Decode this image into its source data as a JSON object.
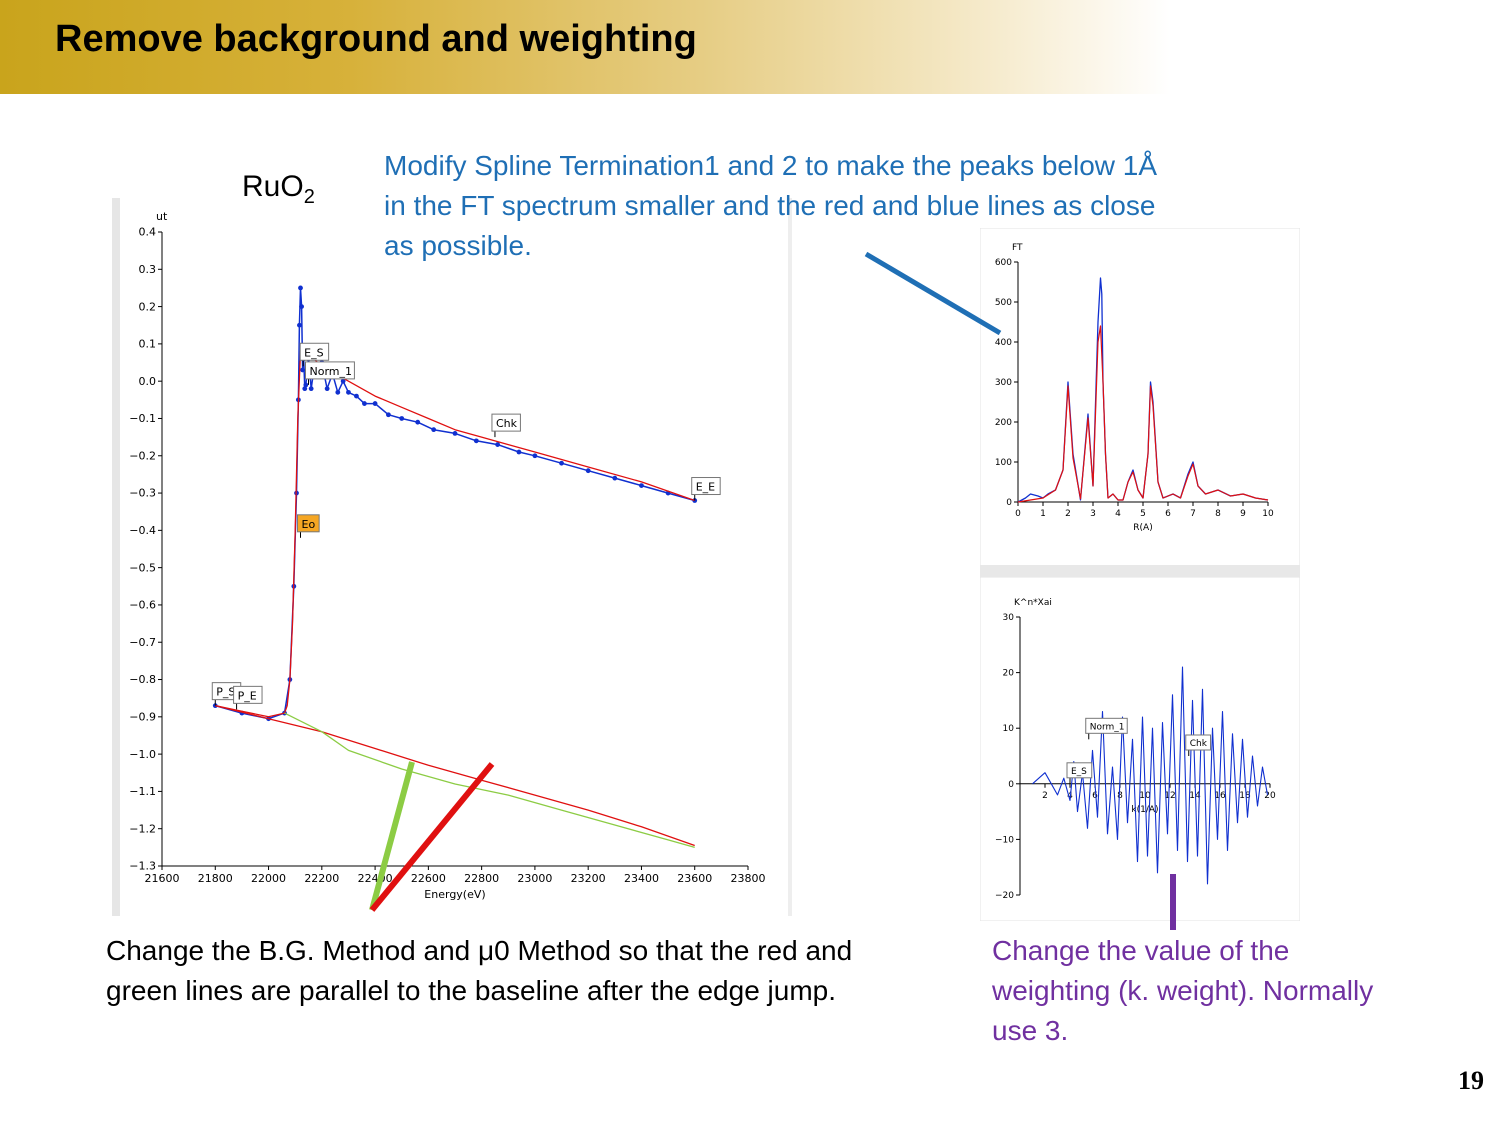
{
  "slide": {
    "title": "Remove background and weighting",
    "sample_label": "RuO",
    "sample_subscript": "2",
    "note_spline": "Modify Spline Termination1 and 2 to make the peaks below 1Å in the FT spectrum smaller and the red and blue lines as close as possible.",
    "note_background": "Change the B.G. Method and μ0 Method so that the red and green lines are parallel to the baseline after the edge jump.",
    "note_weighting": "Change the value of the weighting (k. weight). Normally use 3.",
    "page_number": "19"
  },
  "colors": {
    "title_gold": "#c9a41c",
    "note_blue": "#1f6fb5",
    "note_purple": "#7030a0",
    "data_blue": "#1030d0",
    "fit_red": "#e01010",
    "baseline_green": "#8ccc44",
    "eo_marker": "#f5a623"
  },
  "chart_data": [
    {
      "type": "line",
      "xlabel": "Energy(eV)",
      "ylabel": "ut",
      "xlim": [
        21600,
        23800
      ],
      "ylim": [
        -1.3,
        0.4
      ],
      "xticks": [
        "21600",
        "21800",
        "22000",
        "22200",
        "22400",
        "22600",
        "22800",
        "23000",
        "23200",
        "23400",
        "23600",
        "23800"
      ],
      "yticks": [
        "0.4",
        "0.3",
        "0.2",
        "0.1",
        "0.0",
        "−0.1",
        "−0.2",
        "−0.3",
        "−0.4",
        "−0.5",
        "−0.6",
        "−0.7",
        "−0.8",
        "−0.9",
        "−1.0",
        "−1.1",
        "−1.2",
        "−1.3"
      ],
      "markers": [
        {
          "label": "P_S",
          "x": 21800,
          "y": -0.87
        },
        {
          "label": "P_E",
          "x": 21880,
          "y": -0.88
        },
        {
          "label": "Eo",
          "x": 22120,
          "y": -0.42
        },
        {
          "label": "E_S",
          "x": 22130,
          "y": 0.04
        },
        {
          "label": "Norm_1",
          "x": 22150,
          "y": -0.01
        },
        {
          "label": "Chk",
          "x": 22850,
          "y": -0.15
        },
        {
          "label": "E_E",
          "x": 23600,
          "y": -0.32
        }
      ],
      "series": [
        {
          "x": [
            21800,
            21900,
            22000,
            22060,
            22080,
            22095,
            22105,
            22112,
            22116,
            22120,
            22124,
            22128,
            22132,
            22136,
            22140,
            22150,
            22160,
            22170,
            22180,
            22200,
            22220,
            22240,
            22260,
            22280,
            22300,
            22330,
            22360,
            22400,
            22450,
            22500,
            22560,
            22620,
            22700,
            22780,
            22860,
            22940,
            23000,
            23100,
            23200,
            23300,
            23400,
            23500,
            23600
          ],
          "y": [
            -0.87,
            -0.89,
            -0.905,
            -0.89,
            -0.8,
            -0.55,
            -0.3,
            -0.05,
            0.15,
            0.25,
            0.2,
            0.03,
            0.06,
            -0.02,
            -0.01,
            0.06,
            -0.02,
            0.03,
            0.02,
            0.05,
            -0.02,
            0.02,
            -0.03,
            0.0,
            -0.03,
            -0.04,
            -0.06,
            -0.06,
            -0.09,
            -0.1,
            -0.11,
            -0.13,
            -0.14,
            -0.16,
            -0.17,
            -0.19,
            -0.2,
            -0.22,
            -0.24,
            -0.26,
            -0.28,
            -0.3,
            -0.32
          ]
        },
        {
          "x": [
            21800,
            21900,
            22000,
            22060,
            22070,
            22080,
            22090,
            22100,
            22110,
            22120,
            22140,
            22200,
            22300,
            22400,
            22500,
            22600,
            22700,
            22800,
            22900,
            23000,
            23200,
            23400,
            23600
          ],
          "y": [
            -0.87,
            -0.885,
            -0.9,
            -0.89,
            -0.87,
            -0.8,
            -0.65,
            -0.4,
            -0.1,
            0.08,
            0.08,
            0.04,
            0.0,
            -0.04,
            -0.07,
            -0.1,
            -0.13,
            -0.15,
            -0.17,
            -0.19,
            -0.23,
            -0.27,
            -0.32
          ]
        },
        {
          "x": [
            21800,
            22000,
            22200,
            22400,
            22600,
            22800,
            23000,
            23200,
            23400,
            23600
          ],
          "y": [
            -0.87,
            -0.905,
            -0.94,
            -0.985,
            -1.03,
            -1.07,
            -1.11,
            -1.15,
            -1.195,
            -1.245
          ]
        },
        {
          "x": [
            22060,
            22200,
            22300,
            22500,
            22700,
            22900,
            23100,
            23300,
            23500,
            23600
          ],
          "y": [
            -0.89,
            -0.94,
            -0.99,
            -1.04,
            -1.08,
            -1.11,
            -1.15,
            -1.19,
            -1.23,
            -1.25
          ]
        }
      ]
    },
    {
      "type": "line",
      "xlabel": "R(A)",
      "ylabel": "FT",
      "xlim": [
        0,
        10
      ],
      "ylim": [
        0,
        600
      ],
      "xticks": [
        "0",
        "1",
        "2",
        "3",
        "4",
        "5",
        "6",
        "7",
        "8",
        "9",
        "10"
      ],
      "yticks": [
        "600",
        "500",
        "400",
        "300",
        "200",
        "100",
        "0"
      ],
      "series": [
        {
          "x": [
            0,
            0.3,
            0.5,
            0.8,
            1.0,
            1.2,
            1.5,
            1.8,
            2.0,
            2.2,
            2.5,
            2.8,
            3.0,
            3.2,
            3.3,
            3.35,
            3.4,
            3.5,
            3.6,
            3.8,
            4.0,
            4.2,
            4.4,
            4.6,
            4.8,
            5.0,
            5.2,
            5.3,
            5.4,
            5.6,
            5.8,
            6.0,
            6.2,
            6.5,
            6.8,
            7.0,
            7.2,
            7.5,
            8.0,
            8.5,
            9.0,
            9.5,
            10.0
          ],
          "y": [
            0,
            10,
            20,
            15,
            10,
            20,
            30,
            80,
            300,
            120,
            5,
            220,
            40,
            450,
            560,
            520,
            300,
            120,
            10,
            20,
            5,
            5,
            50,
            80,
            30,
            10,
            120,
            300,
            250,
            50,
            10,
            15,
            20,
            10,
            70,
            100,
            40,
            20,
            30,
            15,
            20,
            10,
            5
          ]
        },
        {
          "x": [
            0,
            0.5,
            1.0,
            1.5,
            1.8,
            2.0,
            2.2,
            2.5,
            2.8,
            3.0,
            3.2,
            3.3,
            3.4,
            3.5,
            3.6,
            3.8,
            4.0,
            4.2,
            4.4,
            4.6,
            4.8,
            5.0,
            5.2,
            5.3,
            5.4,
            5.6,
            5.8,
            6.0,
            6.2,
            6.5,
            6.8,
            7.0,
            7.2,
            7.5,
            8.0,
            8.5,
            9.0,
            9.5,
            10.0
          ],
          "y": [
            0,
            5,
            10,
            30,
            80,
            290,
            110,
            8,
            210,
            40,
            400,
            440,
            300,
            120,
            10,
            20,
            5,
            5,
            50,
            75,
            30,
            10,
            120,
            290,
            240,
            50,
            10,
            15,
            20,
            10,
            65,
            95,
            40,
            20,
            30,
            15,
            20,
            10,
            5
          ]
        }
      ]
    },
    {
      "type": "line",
      "xlabel": "k(1/A)",
      "ylabel": "K^n*Xai",
      "xlim": [
        0,
        20
      ],
      "ylim": [
        -20,
        30
      ],
      "xticks": [
        "2",
        "4",
        "6",
        "8",
        "10",
        "12",
        "14",
        "16",
        "18",
        "20"
      ],
      "yticks": [
        "30",
        "20",
        "10",
        "0",
        "−10",
        "−20"
      ],
      "markers": [
        {
          "label": "E_S",
          "x": 4.0,
          "y": 0
        },
        {
          "label": "Norm_1",
          "x": 5.5,
          "y": 8
        },
        {
          "label": "Chk",
          "x": 13.5,
          "y": 5
        }
      ],
      "series": [
        {
          "x": [
            1.0,
            1.5,
            2.0,
            2.5,
            3.0,
            3.5,
            4.0,
            4.3,
            4.6,
            5.0,
            5.4,
            5.8,
            6.2,
            6.6,
            7.0,
            7.4,
            7.8,
            8.2,
            8.6,
            9.0,
            9.4,
            9.8,
            10.2,
            10.6,
            11.0,
            11.4,
            11.8,
            12.2,
            12.6,
            13.0,
            13.4,
            13.8,
            14.2,
            14.6,
            15.0,
            15.4,
            15.8,
            16.2,
            16.6,
            17.0,
            17.4,
            17.8,
            18.2,
            18.6,
            19.0,
            19.4,
            19.8
          ],
          "y": [
            0,
            1,
            2,
            0,
            -2,
            1,
            -3,
            4,
            -5,
            2,
            -8,
            6,
            -6,
            13,
            -9,
            3,
            -10,
            12,
            -7,
            8,
            -14,
            12,
            -13,
            10,
            -16,
            11,
            -9,
            16,
            -12,
            21,
            -14,
            15,
            -13,
            17,
            -18,
            10,
            -10,
            13,
            -12,
            9,
            -7,
            8,
            -6,
            5,
            -4,
            3,
            -2
          ]
        }
      ]
    }
  ]
}
